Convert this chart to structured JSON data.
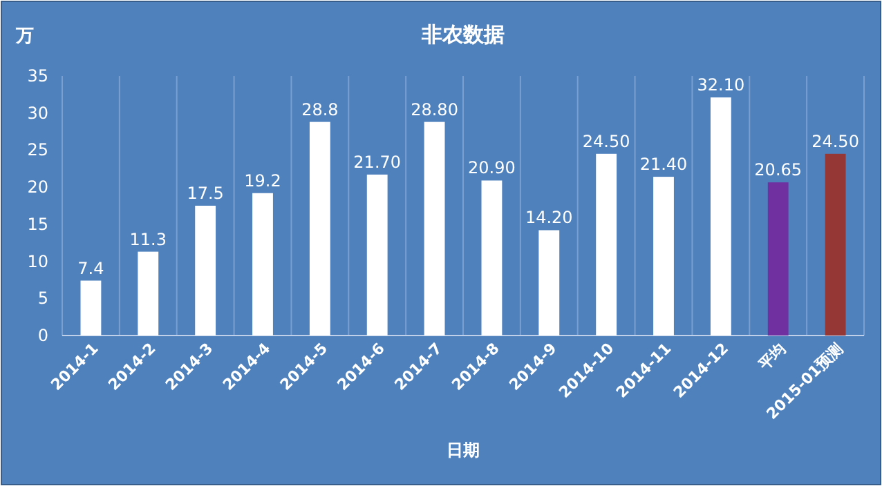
{
  "chart_data": {
    "type": "bar",
    "title": "非农数据",
    "xlabel": "日期",
    "ylabel": "万",
    "categories": [
      "2014-1",
      "2014-2",
      "2014-3",
      "2014-4",
      "2014-5",
      "2014-6",
      "2014-7",
      "2014-8",
      "2014-9",
      "2014-10",
      "2014-11",
      "2014-12",
      "平均",
      "2015-01预测"
    ],
    "values": [
      7.4,
      11.3,
      17.5,
      19.2,
      28.8,
      21.7,
      28.8,
      20.9,
      14.2,
      24.5,
      21.4,
      32.1,
      20.65,
      24.5
    ],
    "value_labels": [
      "7.4",
      "11.3",
      "17.5",
      "19.2",
      "28.8",
      "21.70",
      "28.80",
      "20.90",
      "14.20",
      "24.50",
      "21.40",
      "32.10",
      "20.65",
      "24.50"
    ],
    "colors": [
      "#ffffff",
      "#ffffff",
      "#ffffff",
      "#ffffff",
      "#ffffff",
      "#ffffff",
      "#ffffff",
      "#ffffff",
      "#ffffff",
      "#ffffff",
      "#ffffff",
      "#ffffff",
      "#7030a0",
      "#953735"
    ],
    "ylim": [
      0,
      35
    ],
    "yticks": [
      0,
      5,
      10,
      15,
      20,
      25,
      30,
      35
    ],
    "grid": "x"
  }
}
